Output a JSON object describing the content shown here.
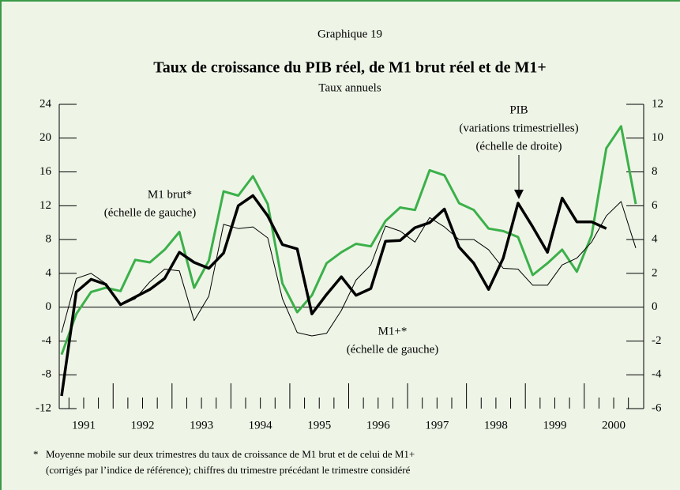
{
  "chart_data": {
    "type": "line",
    "supertitle": "Graphique 19",
    "title": "Taux de croissance du PIB réel, de M1 brut réel et de M1+",
    "subtitle": "Taux annuels",
    "categories": [
      null,
      "1991",
      null,
      null,
      null,
      "1992",
      null,
      null,
      null,
      "1993",
      null,
      null,
      null,
      "1994",
      null,
      null,
      null,
      "1995",
      null,
      null,
      null,
      "1996",
      null,
      null,
      null,
      "1997",
      null,
      null,
      null,
      "1998",
      null,
      null,
      null,
      "1999",
      null,
      null,
      null,
      "2000",
      null,
      null
    ],
    "ylim": [
      -12,
      24
    ],
    "yticks": [
      -12,
      -8,
      -4,
      0,
      4,
      8,
      12,
      16,
      20,
      24
    ],
    "y2lim": [
      -6,
      12
    ],
    "y2ticks": [
      -6,
      -4,
      -2,
      0,
      2,
      4,
      6,
      8,
      10,
      12
    ],
    "series": [
      {
        "name": "M1 brut*",
        "notes": [
          "(échelle de gauche)"
        ],
        "color": "#3cb04a",
        "axis": "y",
        "values": [
          -5.6,
          -0.8,
          1.8,
          2.3,
          1.9,
          5.6,
          5.3,
          6.8,
          8.9,
          2.3,
          5.5,
          13.7,
          13.2,
          15.5,
          12.2,
          2.8,
          -0.6,
          1.4,
          5.2,
          6.5,
          7.5,
          7.2,
          10.2,
          11.8,
          11.5,
          16.2,
          15.6,
          12.3,
          11.5,
          9.3,
          9.0,
          8.3,
          3.8,
          5.2,
          6.8,
          4.2,
          8.5,
          18.8,
          21.4,
          12.2
        ]
      },
      {
        "name": "M1+*",
        "notes": [
          "(échelle de gauche)"
        ],
        "color": "#000000",
        "axis": "y",
        "values": [
          -3.0,
          3.4,
          4.0,
          2.8,
          0.2,
          1.0,
          3.0,
          4.5,
          4.3,
          -1.6,
          1.3,
          9.8,
          9.3,
          9.5,
          8.2,
          1.0,
          -3.0,
          -3.4,
          -3.1,
          -0.4,
          3.2,
          5.0,
          9.6,
          9.0,
          7.7,
          10.6,
          9.5,
          8.0,
          8.0,
          6.8,
          4.6,
          4.5,
          2.6,
          2.6,
          5.0,
          5.8,
          7.7,
          10.8,
          12.5,
          7.0
        ]
      },
      {
        "name": "PIB",
        "notes": [
          "(variations trimestrielles)",
          "(échelle de droite)"
        ],
        "color": "#000000",
        "axis": "y2",
        "values": [
          -5.25,
          0.9,
          1.65,
          1.35,
          0.15,
          0.6,
          1.05,
          1.7,
          3.25,
          2.65,
          2.3,
          3.2,
          6.0,
          6.6,
          5.4,
          3.7,
          3.45,
          -0.4,
          0.75,
          1.8,
          0.7,
          1.1,
          3.9,
          3.95,
          4.7,
          5.0,
          5.8,
          3.55,
          2.6,
          1.05,
          2.9,
          6.15,
          4.75,
          3.25,
          6.45,
          5.05,
          5.05,
          4.65,
          null,
          null
        ]
      }
    ],
    "footnote": {
      "marker": "*",
      "lines": [
        "Moyenne mobile sur deux trimestres du taux de croissance de M1 brut et de celui de M1+",
        "(corrigés par l’indice de référence); chiffres du trimestre précédant le trimestre considéré"
      ]
    }
  }
}
